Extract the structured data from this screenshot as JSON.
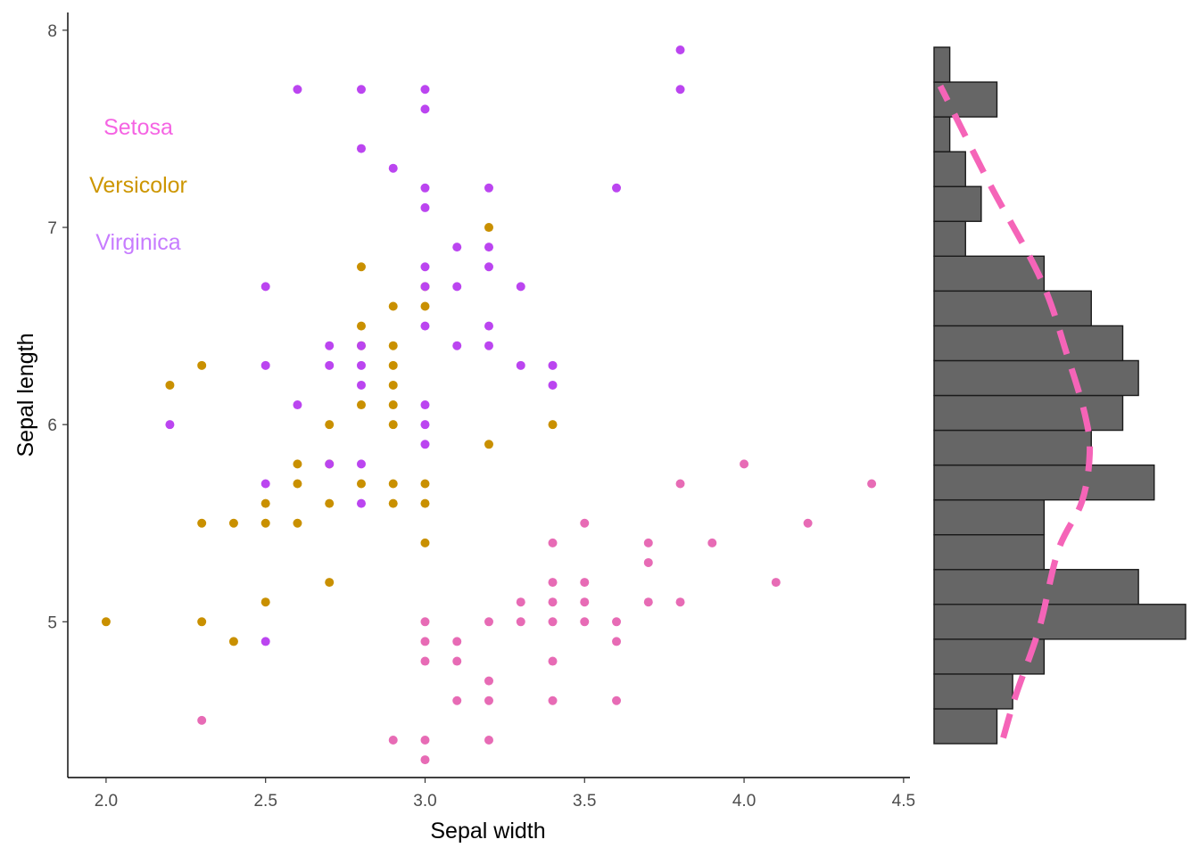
{
  "chart_data": {
    "type": "scatter",
    "title": "",
    "xlabel": "Sepal width",
    "ylabel": "Sepal length",
    "xlim": [
      1.88,
      4.52
    ],
    "ylim": [
      4.21,
      8.09
    ],
    "xticks": [
      "2.0",
      "2.5",
      "3.0",
      "3.5",
      "4.0",
      "4.5"
    ],
    "yticks": [
      "5",
      "6",
      "7",
      "8"
    ],
    "grid": false,
    "legend": {
      "placement": "top-left",
      "entries": [
        {
          "name": "Setosa",
          "color": "#F564E3"
        },
        {
          "name": "Versicolor",
          "color": "#CD9600"
        },
        {
          "name": "Virginica",
          "color": "#C77CFF"
        }
      ]
    },
    "series": [
      {
        "name": "Setosa",
        "color": "#E76BB5",
        "points": [
          [
            2.3,
            4.5
          ],
          [
            2.9,
            4.4
          ],
          [
            3.0,
            4.4
          ],
          [
            3.0,
            4.3
          ],
          [
            3.2,
            4.4
          ],
          [
            3.1,
            4.6
          ],
          [
            3.2,
            4.6
          ],
          [
            3.4,
            4.6
          ],
          [
            3.6,
            4.6
          ],
          [
            3.2,
            4.7
          ],
          [
            3.0,
            4.8
          ],
          [
            3.1,
            4.8
          ],
          [
            3.4,
            4.8
          ],
          [
            3.0,
            4.9
          ],
          [
            3.1,
            4.9
          ],
          [
            3.6,
            4.9
          ],
          [
            3.0,
            5.0
          ],
          [
            3.2,
            5.0
          ],
          [
            3.3,
            5.0
          ],
          [
            3.4,
            5.0
          ],
          [
            3.5,
            5.0
          ],
          [
            3.6,
            5.0
          ],
          [
            3.3,
            5.1
          ],
          [
            3.4,
            5.1
          ],
          [
            3.5,
            5.1
          ],
          [
            3.7,
            5.1
          ],
          [
            3.8,
            5.1
          ],
          [
            3.4,
            5.2
          ],
          [
            3.5,
            5.2
          ],
          [
            4.1,
            5.2
          ],
          [
            3.7,
            5.3
          ],
          [
            3.4,
            5.4
          ],
          [
            3.7,
            5.4
          ],
          [
            3.9,
            5.4
          ],
          [
            3.5,
            5.5
          ],
          [
            4.2,
            5.5
          ],
          [
            3.8,
            5.7
          ],
          [
            4.4,
            5.7
          ],
          [
            4.0,
            5.8
          ]
        ]
      },
      {
        "name": "Versicolor",
        "color": "#C99000",
        "points": [
          [
            2.0,
            5.0
          ],
          [
            2.3,
            5.0
          ],
          [
            2.4,
            4.9
          ],
          [
            2.5,
            5.1
          ],
          [
            2.7,
            5.2
          ],
          [
            2.3,
            5.5
          ],
          [
            2.4,
            5.5
          ],
          [
            2.5,
            5.5
          ],
          [
            2.6,
            5.5
          ],
          [
            2.5,
            5.6
          ],
          [
            2.7,
            5.6
          ],
          [
            2.9,
            5.6
          ],
          [
            3.0,
            5.6
          ],
          [
            2.6,
            5.7
          ],
          [
            2.8,
            5.7
          ],
          [
            2.9,
            5.7
          ],
          [
            3.0,
            5.7
          ],
          [
            2.6,
            5.8
          ],
          [
            2.7,
            5.8
          ],
          [
            2.7,
            6.0
          ],
          [
            2.9,
            6.0
          ],
          [
            3.4,
            6.0
          ],
          [
            2.8,
            6.1
          ],
          [
            2.9,
            6.1
          ],
          [
            2.2,
            6.2
          ],
          [
            2.9,
            6.2
          ],
          [
            2.3,
            6.3
          ],
          [
            2.9,
            6.3
          ],
          [
            2.8,
            6.4
          ],
          [
            2.9,
            6.4
          ],
          [
            2.8,
            6.5
          ],
          [
            2.9,
            6.6
          ],
          [
            3.0,
            6.6
          ],
          [
            2.8,
            6.8
          ],
          [
            3.0,
            6.7
          ],
          [
            3.2,
            7.0
          ],
          [
            3.0,
            5.4
          ],
          [
            3.2,
            5.9
          ]
        ]
      },
      {
        "name": "Virginica",
        "color": "#BB45F0",
        "points": [
          [
            2.5,
            4.9
          ],
          [
            2.5,
            5.7
          ],
          [
            2.8,
            5.6
          ],
          [
            2.8,
            5.8
          ],
          [
            2.7,
            5.8
          ],
          [
            3.0,
            5.9
          ],
          [
            2.2,
            6.0
          ],
          [
            3.0,
            6.0
          ],
          [
            2.6,
            6.1
          ],
          [
            3.0,
            6.1
          ],
          [
            2.8,
            6.2
          ],
          [
            3.4,
            6.2
          ],
          [
            2.5,
            6.3
          ],
          [
            2.7,
            6.3
          ],
          [
            2.8,
            6.3
          ],
          [
            3.3,
            6.3
          ],
          [
            3.4,
            6.3
          ],
          [
            2.7,
            6.4
          ],
          [
            2.8,
            6.4
          ],
          [
            3.1,
            6.4
          ],
          [
            3.2,
            6.4
          ],
          [
            3.0,
            6.5
          ],
          [
            3.2,
            6.5
          ],
          [
            2.5,
            6.7
          ],
          [
            3.0,
            6.7
          ],
          [
            3.1,
            6.7
          ],
          [
            3.3,
            6.7
          ],
          [
            3.0,
            6.8
          ],
          [
            3.2,
            6.8
          ],
          [
            3.1,
            6.9
          ],
          [
            3.2,
            6.9
          ],
          [
            3.0,
            7.1
          ],
          [
            3.0,
            7.2
          ],
          [
            3.2,
            7.2
          ],
          [
            3.6,
            7.2
          ],
          [
            2.9,
            7.3
          ],
          [
            2.8,
            7.4
          ],
          [
            3.0,
            7.6
          ],
          [
            2.6,
            7.7
          ],
          [
            2.8,
            7.7
          ],
          [
            3.0,
            7.7
          ],
          [
            3.8,
            7.7
          ],
          [
            3.8,
            7.9
          ]
        ]
      }
    ],
    "marginal_histogram": {
      "axis": "y",
      "bins": [
        {
          "from": 4.3,
          "to": 4.48,
          "count": 4
        },
        {
          "from": 4.48,
          "to": 4.66,
          "count": 5
        },
        {
          "from": 4.66,
          "to": 4.84,
          "count": 7
        },
        {
          "from": 4.84,
          "to": 5.02,
          "count": 16
        },
        {
          "from": 5.02,
          "to": 5.2,
          "count": 13
        },
        {
          "from": 5.2,
          "to": 5.38,
          "count": 7
        },
        {
          "from": 5.38,
          "to": 5.56,
          "count": 7
        },
        {
          "from": 5.56,
          "to": 5.74,
          "count": 14
        },
        {
          "from": 5.74,
          "to": 5.92,
          "count": 10
        },
        {
          "from": 5.92,
          "to": 6.1,
          "count": 12
        },
        {
          "from": 6.1,
          "to": 6.28,
          "count": 13
        },
        {
          "from": 6.28,
          "to": 6.46,
          "count": 12
        },
        {
          "from": 6.46,
          "to": 6.64,
          "count": 10
        },
        {
          "from": 6.64,
          "to": 6.82,
          "count": 7
        },
        {
          "from": 6.82,
          "to": 7.0,
          "count": 2
        },
        {
          "from": 7.0,
          "to": 7.18,
          "count": 3
        },
        {
          "from": 7.18,
          "to": 7.36,
          "count": 2
        },
        {
          "from": 7.36,
          "to": 7.54,
          "count": 1
        },
        {
          "from": 7.54,
          "to": 7.72,
          "count": 4
        },
        {
          "from": 7.72,
          "to": 7.9,
          "count": 1
        }
      ],
      "fill": "#666666",
      "density_color": "#F564B8",
      "density": [
        [
          4.33,
          4.4
        ],
        [
          4.55,
          5.2
        ],
        [
          4.9,
          6.7
        ],
        [
          5.3,
          7.9
        ],
        [
          5.55,
          9.4
        ],
        [
          5.8,
          9.9
        ],
        [
          6.0,
          9.6
        ],
        [
          6.3,
          8.5
        ],
        [
          6.7,
          6.8
        ],
        [
          7.2,
          3.5
        ],
        [
          7.7,
          0.4
        ]
      ]
    }
  }
}
